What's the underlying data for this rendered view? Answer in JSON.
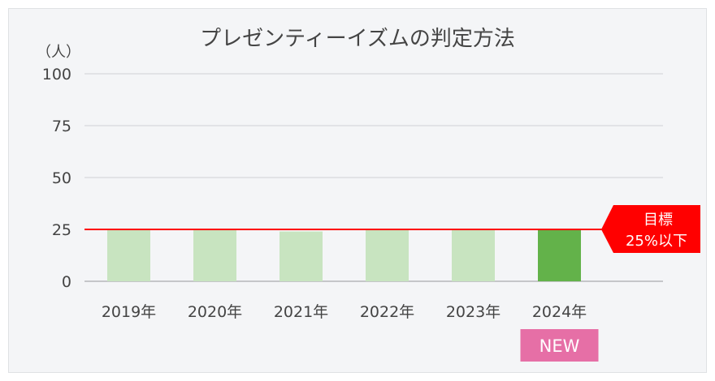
{
  "chart_data": {
    "type": "bar",
    "title": "プレゼンティーイズムの判定方法",
    "ylabel": "（人）",
    "ylim": [
      0,
      100
    ],
    "yticks": [
      0,
      25,
      50,
      75,
      100
    ],
    "categories": [
      "2019年",
      "2020年",
      "2021年",
      "2022年",
      "2023年",
      "2024年"
    ],
    "values": [
      25,
      25,
      24,
      25,
      25,
      25
    ],
    "grid": true,
    "bar_colors": [
      "#c8e4c0",
      "#c8e4c0",
      "#c8e4c0",
      "#c8e4c0",
      "#c8e4c0",
      "#63b24a"
    ],
    "target": {
      "value": 25,
      "label_line1": "目標",
      "label_line2": "25%以下",
      "color": "#ff0000"
    },
    "badge": {
      "category_index": 5,
      "text": "NEW",
      "color": "#e66fa6"
    }
  }
}
